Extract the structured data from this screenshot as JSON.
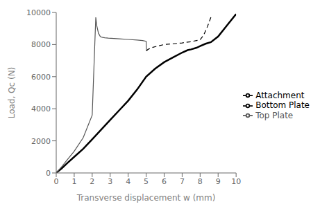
{
  "chart_data": {
    "type": "line",
    "title": "",
    "xlabel": "Transverse displacement w (mm)",
    "ylabel": "Load, Qc (N)",
    "xlim": [
      0,
      10
    ],
    "ylim": [
      0,
      10000
    ],
    "xticks": [
      0,
      1,
      2,
      3,
      4,
      5,
      6,
      7,
      8,
      9,
      10
    ],
    "yticks": [
      0,
      2000,
      4000,
      6000,
      8000,
      10000
    ],
    "grid": false,
    "legend": "right",
    "series": [
      {
        "name": "Attachment",
        "color": "#000000",
        "line_style": "solid",
        "x": [
          0,
          0.1,
          0.3,
          0.6,
          1.0,
          1.5,
          2.0,
          2.5,
          3.0,
          3.5,
          4.0,
          4.5,
          5.0,
          5.5,
          6.0,
          6.5,
          7.0,
          7.3,
          7.5,
          7.8,
          8.0,
          8.3,
          8.6,
          9.0,
          9.5,
          10.0
        ],
        "values": [
          0,
          100,
          280,
          600,
          1000,
          1500,
          2100,
          2700,
          3300,
          3900,
          4500,
          5200,
          6000,
          6500,
          6900,
          7200,
          7500,
          7650,
          7700,
          7800,
          7900,
          8050,
          8150,
          8500,
          9200,
          9900
        ]
      },
      {
        "name": "Top Plate",
        "color": "#555555",
        "line_style": "solid",
        "x": [
          0,
          0.1,
          0.3,
          0.6,
          1.0,
          1.5,
          2.0,
          2.15,
          2.2,
          2.25,
          2.35,
          2.45,
          2.55,
          2.7,
          2.9,
          3.2,
          3.5,
          4.0,
          4.5,
          4.8,
          5.0,
          5.02
        ],
        "values": [
          0,
          130,
          380,
          800,
          1350,
          2200,
          3600,
          8200,
          9700,
          9200,
          8700,
          8500,
          8450,
          8420,
          8400,
          8380,
          8360,
          8320,
          8280,
          8250,
          8200,
          7600
        ]
      },
      {
        "name": "Bottom Plate",
        "color": "#000000",
        "line_style": "dashed",
        "x": [
          5.02,
          5.1,
          5.3,
          5.6,
          6.0,
          6.5,
          7.0,
          7.3,
          7.5,
          7.8,
          8.0,
          8.2,
          8.4,
          8.6
        ],
        "values": [
          7600,
          7700,
          7800,
          7900,
          8000,
          8050,
          8100,
          8150,
          8180,
          8250,
          8300,
          8600,
          9100,
          9700
        ]
      }
    ]
  }
}
